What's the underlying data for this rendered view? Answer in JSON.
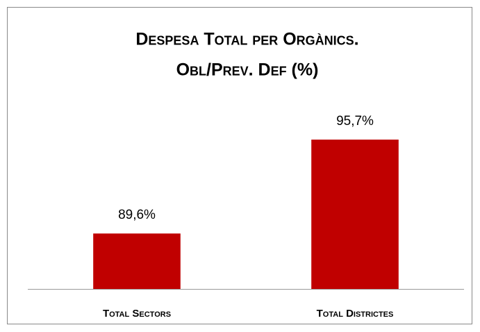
{
  "chart_data": {
    "type": "bar",
    "title": [
      "Despesa Total per Orgànics.",
      "Obl/Prev. Def (%)"
    ],
    "categories": [
      "Total Sectors",
      "Total Districtes"
    ],
    "values": [
      89.6,
      95.7
    ],
    "value_labels": [
      "89,6%",
      "95,7%"
    ],
    "color": "#c00000",
    "ylim": [
      86,
      98
    ]
  }
}
